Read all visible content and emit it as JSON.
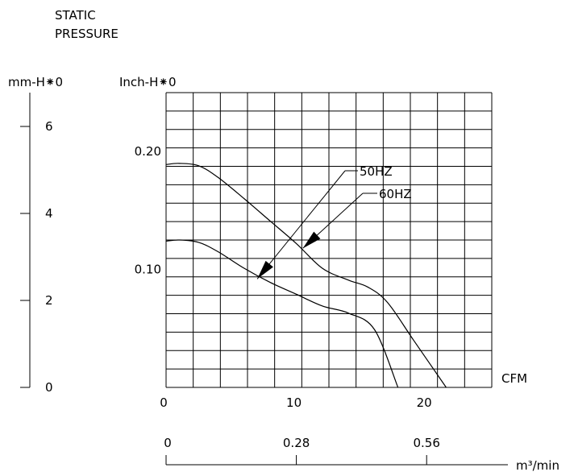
{
  "chart_data": {
    "type": "line",
    "title": "STATIC\nPRESSURE",
    "title_lines": [
      "STATIC",
      "PRESSURE"
    ],
    "left_axis_label": "mm-H⁕0",
    "left_axis_ticks": [
      "0",
      "2",
      "4",
      "6"
    ],
    "left_axis_values": [
      0,
      2,
      4,
      6
    ],
    "ylabel": "Inch-H⁕0",
    "y_ticks": [
      "0.10",
      "0.20"
    ],
    "y_tick_values": [
      0.1,
      0.2
    ],
    "ylim": [
      0,
      0.25
    ],
    "xlabel": "CFM",
    "x_ticks": [
      "0",
      "10",
      "20"
    ],
    "x_tick_values": [
      0,
      10,
      20
    ],
    "xlim": [
      0,
      25
    ],
    "secondary_x_label": "m³/min",
    "secondary_x_ticks": [
      "0",
      "0.28",
      "0.56"
    ],
    "secondary_x_values": [
      0,
      0.28,
      0.56
    ],
    "grid": true,
    "series": [
      {
        "name": "50HZ",
        "x": [
          0,
          1,
          2.5,
          4,
          6,
          8,
          10,
          12,
          14,
          16,
          17.8
        ],
        "y": [
          0.124,
          0.125,
          0.123,
          0.115,
          0.101,
          0.089,
          0.079,
          0.069,
          0.063,
          0.049,
          0.0
        ]
      },
      {
        "name": "60HZ",
        "x": [
          0,
          1,
          2.5,
          4,
          6,
          8,
          10,
          12,
          14,
          15.5,
          17,
          19,
          21.5
        ],
        "y": [
          0.189,
          0.19,
          0.188,
          0.178,
          0.16,
          0.141,
          0.122,
          0.101,
          0.091,
          0.085,
          0.072,
          0.04,
          0.0
        ]
      }
    ],
    "annotations": [
      {
        "text": "50HZ",
        "points_to_series": "50HZ",
        "at_x": 7,
        "at_y": 0.092
      },
      {
        "text": "60HZ",
        "points_to_series": "60HZ",
        "at_x": 10.5,
        "at_y": 0.118
      }
    ]
  }
}
